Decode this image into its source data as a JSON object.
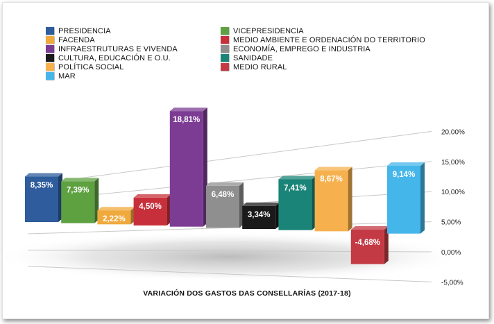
{
  "chart_data": {
    "type": "bar",
    "title": "VARIACIÓN DOS GASTOS DAS CONSELLARÍAS (2017-18)",
    "categories": [
      "PRESIDENCIA",
      "VICEPRESIDENCIA",
      "FACENDA",
      "MEDIO AMBIENTE E ORDENACIÓN DO TERRITORIO",
      "INFRAESTRUTURAS E VIVENDA",
      "ECONOMÍA, EMPREGO E INDUSTRIA",
      "CULTURA, EDUCACIÓN E O.U.",
      "SANIDADE",
      "POLÍTICA SOCIAL",
      "MEDIO RURAL",
      "MAR"
    ],
    "values": [
      8.35,
      7.39,
      2.22,
      4.5,
      18.81,
      6.48,
      3.34,
      7.41,
      8.67,
      -4.68,
      9.14
    ],
    "value_labels": [
      "8,35%",
      "7,39%",
      "2,22%",
      "4,50%",
      "18,81%",
      "6,48%",
      "3,34%",
      "7,41%",
      "8,67%",
      "-4,68%",
      "9,14%"
    ],
    "colors": [
      "#2e5c9c",
      "#5ea140",
      "#f0a93c",
      "#c7303a",
      "#7c3c94",
      "#8f8f8f",
      "#1a1a1a",
      "#1a8478",
      "#f6b14e",
      "#c43a44",
      "#45b6ea"
    ],
    "y_ticks": [
      "20,00%",
      "15,00%",
      "10,00%",
      "5,00%",
      "0,00%",
      "-5,00%"
    ],
    "y_tick_values": [
      20,
      15,
      10,
      5,
      0,
      -5
    ],
    "ylim": [
      -5,
      20
    ],
    "grid": true,
    "legend_position": "top",
    "chart_style": "3d-perspective"
  }
}
